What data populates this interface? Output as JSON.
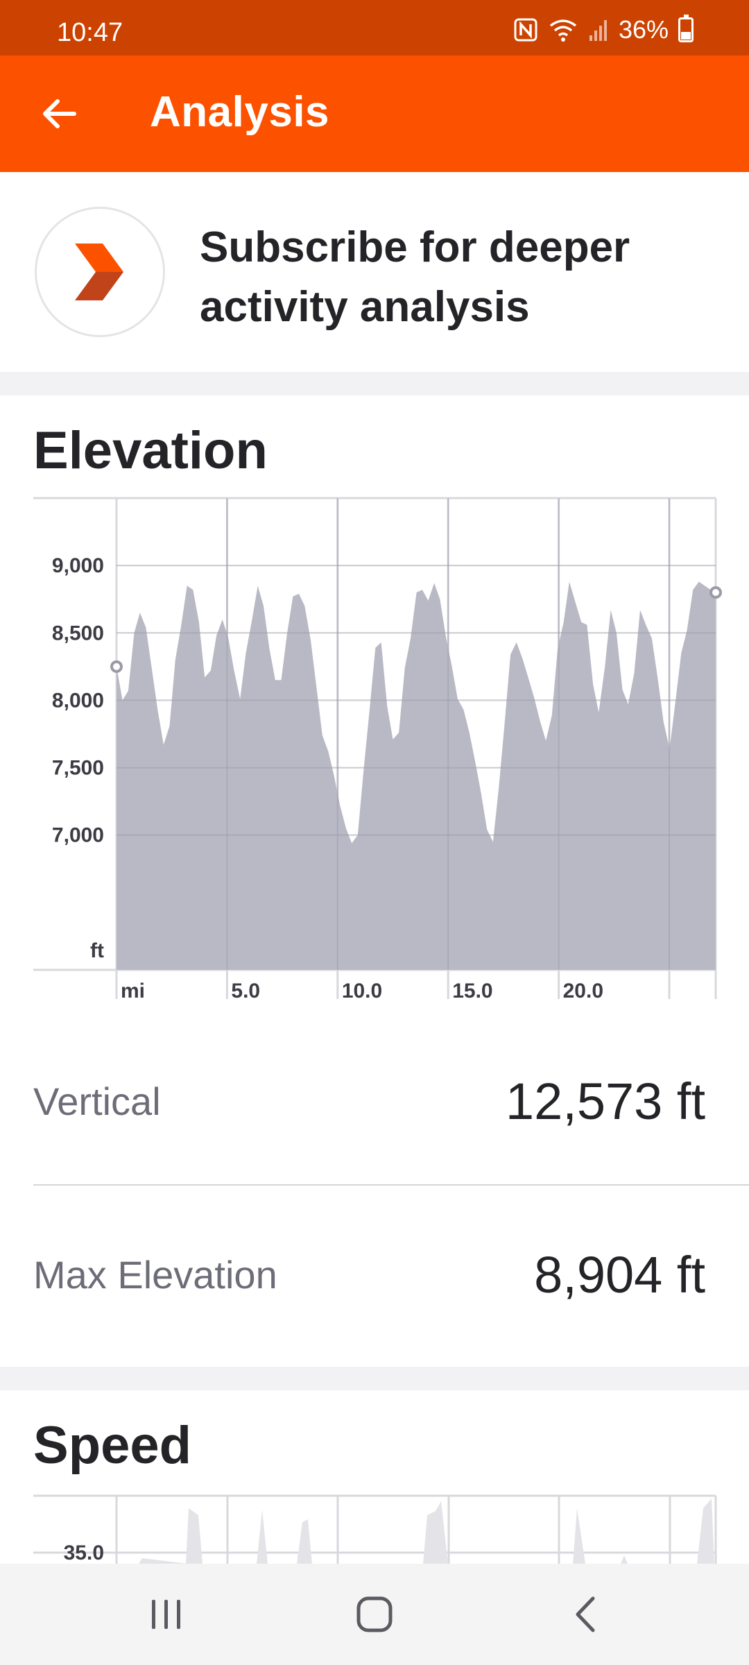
{
  "status_bar": {
    "time": "10:47",
    "battery": "36%",
    "battery_level": 0.36
  },
  "app_bar": {
    "title": "Analysis",
    "back_icon": "arrow-left-icon"
  },
  "subscribe": {
    "text": "Subscribe for deeper activity analysis",
    "logo_icon": "strava-summit-chevron-icon"
  },
  "elevation": {
    "title": "Elevation",
    "stats": [
      {
        "label": "Vertical",
        "value": "12,573 ft"
      },
      {
        "label": "Max Elevation",
        "value": "8,904 ft"
      }
    ]
  },
  "speed": {
    "title": "Speed",
    "first_tick": "35.0"
  },
  "colors": {
    "brand": "#fc5200",
    "status_bar": "#cc4200",
    "area_fill": "#b9b9c6",
    "grid": "#d8d8dd"
  },
  "chart_data": {
    "type": "area",
    "title": "Elevation",
    "x_unit": "mi",
    "y_unit": "ft",
    "xlim": [
      0,
      27.1
    ],
    "ylim": [
      6000,
      9500
    ],
    "y_ticks": [
      9000,
      8500,
      8000,
      7500,
      7000
    ],
    "y_tick_labels": [
      "9,000",
      "8,500",
      "8,000",
      "7,500",
      "7,000"
    ],
    "x_ticks": [
      5,
      10,
      15,
      20
    ],
    "x_tick_labels": [
      "5.0",
      "10.0",
      "15.0",
      "20.0"
    ],
    "grid": true,
    "x": [
      0,
      0.27,
      0.53,
      0.8,
      1.06,
      1.33,
      1.6,
      1.86,
      2.13,
      2.4,
      2.66,
      2.93,
      3.19,
      3.46,
      3.73,
      3.99,
      4.26,
      4.52,
      4.79,
      5.06,
      5.32,
      5.59,
      5.85,
      6.12,
      6.39,
      6.65,
      6.92,
      7.18,
      7.45,
      7.72,
      7.98,
      8.25,
      8.51,
      8.78,
      9.05,
      9.31,
      9.58,
      9.84,
      10.11,
      10.38,
      10.64,
      10.91,
      11.17,
      11.44,
      11.71,
      11.97,
      12.24,
      12.5,
      12.77,
      13.04,
      13.3,
      13.57,
      13.83,
      14.1,
      14.37,
      14.63,
      14.9,
      15.16,
      15.43,
      15.7,
      15.96,
      16.23,
      16.49,
      16.76,
      17.03,
      17.29,
      17.56,
      17.82,
      18.09,
      18.36,
      18.62,
      18.89,
      19.15,
      19.42,
      19.69,
      19.95,
      20.22,
      20.48,
      20.75,
      21.02,
      21.28,
      21.55,
      21.81,
      22.08,
      22.35,
      22.61,
      22.88,
      23.14,
      23.41,
      23.68,
      23.94,
      24.21,
      24.47,
      24.74,
      25.01,
      25.27,
      25.54,
      25.8,
      26.07,
      26.34,
      26.6,
      26.87,
      27.1
    ],
    "series": [
      {
        "values": [
          8250,
          8000,
          8070,
          8500,
          8650,
          8540,
          8230,
          7930,
          7670,
          7810,
          8300,
          8560,
          8850,
          8820,
          8580,
          8170,
          8220,
          8480,
          8600,
          8460,
          8220,
          8010,
          8350,
          8590,
          8850,
          8700,
          8380,
          8150,
          8150,
          8500,
          8770,
          8790,
          8700,
          8450,
          8090,
          7740,
          7620,
          7440,
          7220,
          7050,
          6940,
          7000,
          7470,
          7920,
          8390,
          8430,
          7960,
          7710,
          7760,
          8240,
          8460,
          8800,
          8820,
          8740,
          8870,
          8750,
          8470,
          8260,
          8010,
          7930,
          7760,
          7540,
          7310,
          7040,
          6950,
          7350,
          7840,
          8340,
          8430,
          8310,
          8170,
          8020,
          7850,
          7700,
          7890,
          8380,
          8580,
          8880,
          8730,
          8580,
          8560,
          8120,
          7910,
          8240,
          8670,
          8500,
          8080,
          7970,
          8200,
          8670,
          8560,
          8460,
          8170,
          7840,
          7640,
          7980,
          8350,
          8520,
          8820,
          8880,
          8850,
          8820,
          8800
        ]
      }
    ]
  }
}
